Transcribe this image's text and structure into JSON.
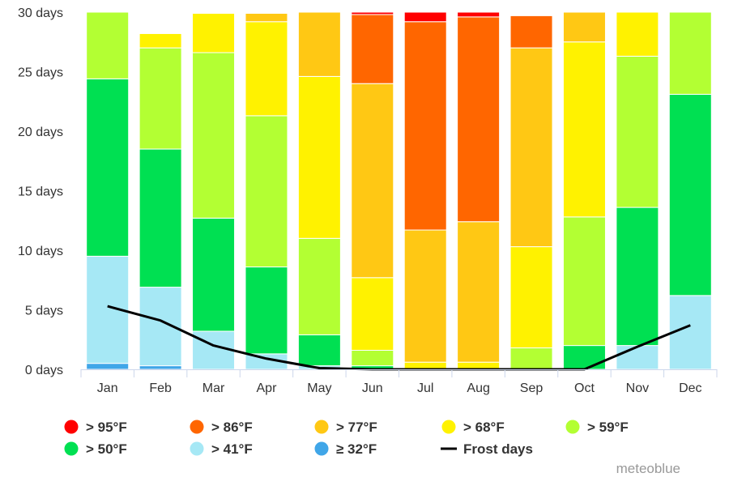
{
  "chart_data": {
    "type": "bar",
    "stacked": true,
    "title": "",
    "xlabel": "",
    "ylabel": "",
    "ylim": [
      0,
      30
    ],
    "yticks": [
      0,
      5,
      10,
      15,
      20,
      25,
      30
    ],
    "ytick_labels": [
      "0 days",
      "5 days",
      "10 days",
      "15 days",
      "20 days",
      "25 days",
      "30 days"
    ],
    "categories": [
      "Jan",
      "Feb",
      "Mar",
      "Apr",
      "May",
      "Jun",
      "Jul",
      "Aug",
      "Sep",
      "Oct",
      "Nov",
      "Dec"
    ],
    "series": [
      {
        "name": "≥ 32°F",
        "color": "#40a6e8",
        "values": [
          0.5,
          0.3,
          0,
          0,
          0,
          0,
          0,
          0,
          0,
          0,
          0,
          0
        ]
      },
      {
        "name": "> 41°F",
        "color": "#a6e8f5",
        "values": [
          9.0,
          6.6,
          3.2,
          1.3,
          0.3,
          0,
          0,
          0,
          0,
          0,
          2.0,
          6.2
        ]
      },
      {
        "name": "> 50°F",
        "color": "#00e052",
        "values": [
          14.9,
          11.6,
          9.5,
          7.3,
          2.6,
          0.3,
          0,
          0,
          0,
          2.0,
          11.6,
          16.9
        ]
      },
      {
        "name": "> 59°F",
        "color": "#b3ff33",
        "values": [
          5.6,
          8.5,
          13.9,
          12.7,
          8.1,
          1.3,
          0,
          0,
          1.8,
          10.8,
          12.7,
          6.9
        ]
      },
      {
        "name": "> 68°F",
        "color": "#fff200",
        "values": [
          0,
          1.2,
          3.3,
          7.9,
          13.6,
          6.1,
          0.6,
          0.6,
          8.5,
          14.7,
          3.7,
          0
        ]
      },
      {
        "name": "> 77°F",
        "color": "#ffc814",
        "values": [
          0,
          0,
          0,
          0.7,
          5.4,
          16.3,
          11.1,
          11.8,
          16.7,
          2.5,
          0,
          0
        ]
      },
      {
        "name": "> 86°F",
        "color": "#ff6600",
        "values": [
          0,
          0,
          0,
          0,
          0,
          5.8,
          17.5,
          17.2,
          2.7,
          0,
          0,
          0
        ]
      },
      {
        "name": "> 95°F",
        "color": "#ff0000",
        "values": [
          0,
          0,
          0,
          0,
          0,
          0.2,
          0.8,
          0.4,
          0,
          0,
          0,
          0
        ]
      },
      {
        "name": "Frost days",
        "type": "line",
        "color": "#000000",
        "values": [
          5.3,
          4.1,
          2.0,
          0.9,
          0.1,
          0,
          0,
          0,
          0,
          0,
          1.9,
          3.7
        ]
      }
    ],
    "legend_placement": "bottom",
    "grid": false
  },
  "credit": "meteoblue"
}
